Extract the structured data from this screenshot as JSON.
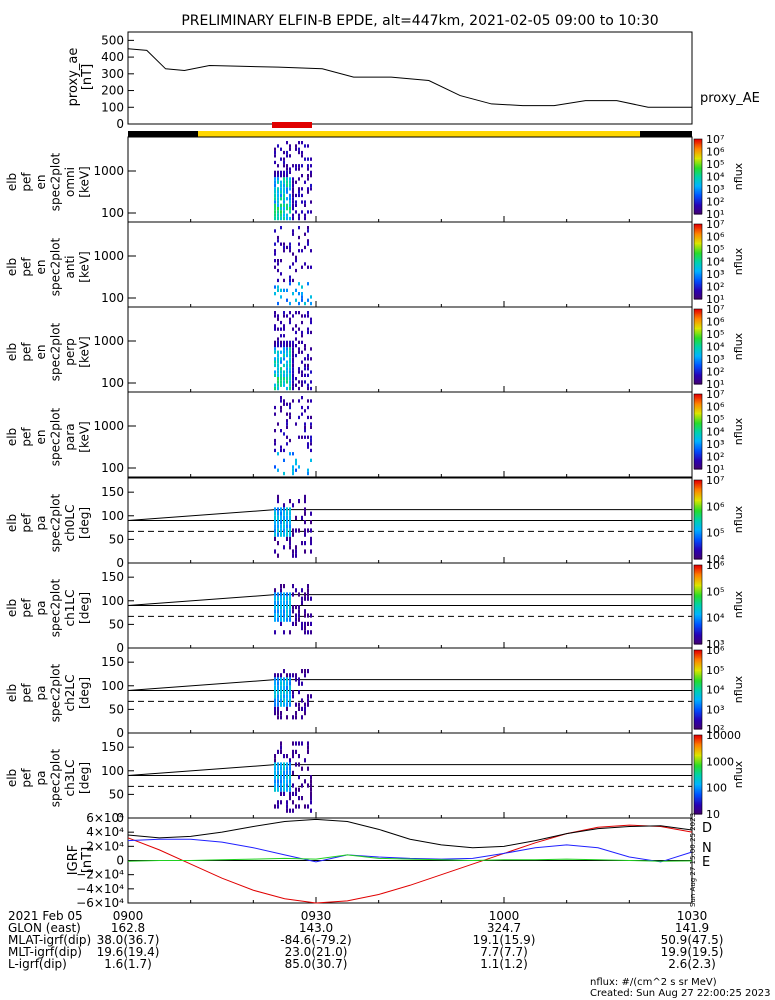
{
  "title": "PRELIMINARY ELFIN-B EPDE, alt=447km, 2021-02-05 09:00 to 10:30",
  "proxy_ae": {
    "ylabel_line1": "proxy_ae",
    "ylabel_line2": "[nT]",
    "legend": "proxy_AE",
    "ticks": [
      "500",
      "400",
      "300",
      "200",
      "100",
      "0"
    ]
  },
  "spectrograms": [
    {
      "labels": [
        "elb",
        "pef",
        "en",
        "spec2plot",
        "omni",
        "[keV]"
      ],
      "ticks": [
        "1000",
        "100"
      ],
      "cb": {
        "label": "nflux",
        "ticks": [
          "10⁷",
          "10⁶",
          "10⁵",
          "10⁴",
          "10³",
          "10²",
          "10¹"
        ]
      }
    },
    {
      "labels": [
        "elb",
        "pef",
        "en",
        "spec2plot",
        "anti",
        "[keV]"
      ],
      "ticks": [
        "1000",
        "100"
      ],
      "cb": {
        "label": "nflux",
        "ticks": [
          "10⁷",
          "10⁶",
          "10⁵",
          "10⁴",
          "10³",
          "10²",
          "10¹"
        ]
      }
    },
    {
      "labels": [
        "elb",
        "pef",
        "en",
        "spec2plot",
        "perp",
        "[keV]"
      ],
      "ticks": [
        "1000",
        "100"
      ],
      "cb": {
        "label": "nflux",
        "ticks": [
          "10⁷",
          "10⁶",
          "10⁵",
          "10⁴",
          "10³",
          "10²",
          "10¹"
        ]
      }
    },
    {
      "labels": [
        "elb",
        "pef",
        "en",
        "spec2plot",
        "para",
        "[keV]"
      ],
      "ticks": [
        "1000",
        "100"
      ],
      "cb": {
        "label": "nflux",
        "ticks": [
          "10⁷",
          "10⁶",
          "10⁵",
          "10⁴",
          "10³",
          "10²",
          "10¹"
        ]
      }
    }
  ],
  "pitch_panels": [
    {
      "labels": [
        "elb",
        "pef",
        "pa",
        "spec2plot",
        "ch0LC",
        "[deg]"
      ],
      "ticks": [
        "150",
        "100",
        "50",
        "0"
      ],
      "cb": {
        "label": "nflux",
        "ticks": [
          "10⁷",
          "10⁶",
          "10⁵",
          "10⁴"
        ]
      }
    },
    {
      "labels": [
        "elb",
        "pef",
        "pa",
        "spec2plot",
        "ch1LC",
        "[deg]"
      ],
      "ticks": [
        "150",
        "100",
        "50",
        "0"
      ],
      "cb": {
        "label": "nflux",
        "ticks": [
          "10⁶",
          "10⁵",
          "10⁴",
          "10³"
        ]
      }
    },
    {
      "labels": [
        "elb",
        "pef",
        "pa",
        "spec2plot",
        "ch2LC",
        "[deg]"
      ],
      "ticks": [
        "150",
        "100",
        "50",
        "0"
      ],
      "cb": {
        "label": "nflux",
        "ticks": [
          "10⁶",
          "10⁵",
          "10⁴",
          "10³",
          "10²"
        ]
      }
    },
    {
      "labels": [
        "elb",
        "pef",
        "pa",
        "spec2plot",
        "ch3LC",
        "[deg]"
      ],
      "ticks": [
        "150",
        "100",
        "50",
        "0"
      ],
      "cb": {
        "label": "nflux",
        "ticks": [
          "10000",
          "1000",
          "100",
          "10"
        ]
      }
    }
  ],
  "igrf": {
    "ylabel_line1": "IGRF",
    "ylabel_line2": "[nT]",
    "ticks": [
      "6×10⁴",
      "4×10⁴",
      "2×10⁴",
      "0",
      "−2×10⁴",
      "−4×10⁴",
      "−6×10⁴"
    ],
    "legend": [
      {
        "name": "D",
        "color": "#e00000"
      },
      {
        "name": "N",
        "color": "#2020ff"
      },
      {
        "name": "E",
        "color": "#20d020"
      }
    ],
    "stamp": "Sun Aug 27 15:00:25 2023"
  },
  "footer": {
    "rows": [
      {
        "label": "2021 Feb 05",
        "v": [
          "0900",
          "0930",
          "1000",
          "1030"
        ]
      },
      {
        "label": "GLON (east)",
        "v": [
          "162.8",
          "143.0",
          "324.7",
          "141.9"
        ]
      },
      {
        "label": "MLAT-igrf(dip)",
        "v": [
          "38.0(36.7)",
          "-84.6(-79.2)",
          "19.1(15.9)",
          "50.9(47.5)"
        ]
      },
      {
        "label": "MLT-igrf(dip)",
        "v": [
          "19.6(19.4)",
          "23.0(21.0)",
          "7.7(7.7)",
          "19.9(19.5)"
        ]
      },
      {
        "label": "L-igrf(dip)",
        "v": [
          "1.6(1.7)",
          "85.0(30.7)",
          "1.1(1.2)",
          "2.6(2.3)"
        ]
      }
    ],
    "units": "nflux: #/(cm^2 s sr MeV)",
    "created": "Created: Sun Aug 27 22:00:25 2023"
  },
  "chart_data": [
    {
      "type": "line",
      "ylabel": "proxy_ae [nT]",
      "ylim": [
        0,
        550
      ],
      "xlim": [
        "09:00",
        "10:30"
      ],
      "x": [
        "09:00",
        "09:03",
        "09:06",
        "09:09",
        "09:13",
        "09:18",
        "09:24",
        "09:31",
        "09:36",
        "09:42",
        "09:48",
        "09:53",
        "09:58",
        "10:03",
        "10:08",
        "10:13",
        "10:18",
        "10:23",
        "10:30"
      ],
      "series": [
        {
          "name": "proxy_AE",
          "color": "#000000",
          "values": [
            450,
            440,
            330,
            320,
            350,
            345,
            340,
            330,
            280,
            280,
            260,
            170,
            120,
            110,
            110,
            140,
            140,
            100,
            100
          ]
        }
      ]
    },
    {
      "type": "heatmap",
      "ylabel": "IGRF [nT]",
      "ylim": [
        -60000,
        60000
      ],
      "series": [
        {
          "name": "D",
          "color": "#e00000",
          "x_min": [
            0,
            5,
            10,
            15,
            20,
            25,
            30,
            35,
            40,
            45,
            50,
            55,
            60,
            65,
            70,
            75,
            80,
            85,
            90
          ],
          "values": [
            32000,
            15000,
            -5000,
            -25000,
            -42000,
            -54000,
            -60000,
            -57000,
            -48000,
            -35000,
            -20000,
            -5000,
            10000,
            25000,
            38000,
            47000,
            50000,
            48000,
            40000
          ]
        },
        {
          "name": "N",
          "color": "#2020ff",
          "x_min": [
            0,
            5,
            10,
            15,
            20,
            25,
            30,
            35,
            40,
            45,
            50,
            55,
            60,
            65,
            70,
            75,
            80,
            85,
            90
          ],
          "values": [
            28000,
            30000,
            30000,
            26000,
            18000,
            8000,
            -2000,
            8000,
            5000,
            3000,
            2000,
            3000,
            10000,
            18000,
            22000,
            18000,
            5000,
            -2000,
            12000
          ]
        },
        {
          "name": "E",
          "color": "#20d020",
          "x_min": [
            0,
            5,
            10,
            15,
            20,
            25,
            30,
            35,
            40,
            45,
            50,
            55,
            60,
            65,
            70,
            75,
            80,
            85,
            90
          ],
          "values": [
            -1000,
            0,
            0,
            1000,
            2000,
            3000,
            2000,
            8000,
            3000,
            2000,
            1000,
            0,
            1000,
            1000,
            2000,
            1000,
            0,
            -1000,
            -500
          ]
        },
        {
          "name": "total",
          "color": "#000000",
          "x_min": [
            0,
            5,
            10,
            15,
            20,
            25,
            30,
            35,
            40,
            45,
            50,
            55,
            60,
            65,
            70,
            75,
            80,
            85,
            90
          ],
          "values": [
            36000,
            32000,
            34000,
            40000,
            48000,
            55000,
            58000,
            55000,
            44000,
            30000,
            22000,
            18000,
            20000,
            28000,
            38000,
            45000,
            48000,
            49000,
            43000
          ]
        }
      ]
    }
  ]
}
